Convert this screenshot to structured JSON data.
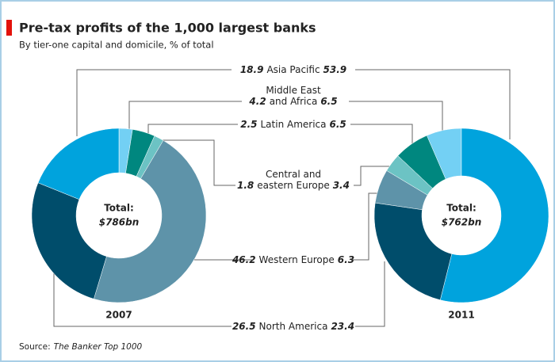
{
  "chart_data": {
    "type": "donut",
    "title": "Pre-tax profits of the 1,000 largest banks",
    "subtitle": "By tier-one capital and domicile, % of total",
    "categories": [
      [
        "Latin America"
      ],
      [
        "Middle East",
        "and Africa"
      ],
      [
        "Central and",
        "eastern Europe"
      ],
      [
        "Western Europe"
      ],
      [
        "North America"
      ],
      [
        "Asia Pacific"
      ]
    ],
    "colors": [
      "#73d0f4",
      "#00877f",
      "#6cc3c4",
      "#5e93a9",
      "#004d6b",
      "#00a3dd"
    ],
    "center_label": "Total:",
    "series": [
      {
        "name": "2007",
        "total_label": "$786bn",
        "values": [
          2.5,
          4.2,
          1.8,
          46.2,
          26.5,
          18.9
        ]
      },
      {
        "name": "2011",
        "total_label": "$762bn",
        "values": [
          6.5,
          6.5,
          3.4,
          6.3,
          23.4,
          53.9
        ]
      }
    ],
    "source_label": "Source:",
    "source": "The Banker Top 1000"
  }
}
